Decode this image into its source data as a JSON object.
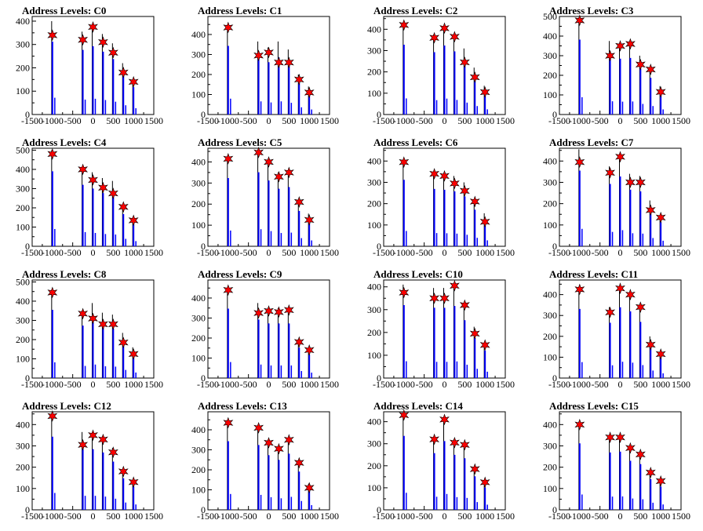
{
  "chart_data": [
    {
      "title": "Address Levels: C0",
      "type": "bar",
      "xlim": [
        -1500,
        1500
      ],
      "ylim": [
        0,
        420
      ],
      "xticks": [
        -1500,
        -1000,
        -500,
        0,
        500,
        1000,
        1500
      ],
      "yticks": [
        0,
        100,
        200,
        300,
        400
      ],
      "x": [
        -1000,
        -250,
        0,
        250,
        500,
        750,
        1000
      ],
      "values": [
        400,
        355,
        375,
        345,
        305,
        220,
        150
      ],
      "peaks": [
        340,
        320,
        375,
        310,
        265,
        180,
        140
      ]
    },
    {
      "title": "Address Levels: C1",
      "type": "bar",
      "xlim": [
        -1500,
        1500
      ],
      "ylim": [
        0,
        490
      ],
      "xticks": [
        -1500,
        -1000,
        -500,
        0,
        500,
        1000,
        1500
      ],
      "yticks": [
        0,
        100,
        200,
        300,
        400
      ],
      "x": [
        -1000,
        -250,
        0,
        250,
        500,
        750,
        1000
      ],
      "values": [
        440,
        365,
        335,
        365,
        325,
        200,
        140
      ],
      "peaks": [
        435,
        295,
        310,
        260,
        260,
        175,
        110
      ]
    },
    {
      "title": "Address Levels: C2",
      "type": "bar",
      "xlim": [
        -1500,
        1500
      ],
      "ylim": [
        0,
        460
      ],
      "xticks": [
        -1500,
        -1000,
        -500,
        0,
        500,
        1000,
        1500
      ],
      "yticks": [
        0,
        100,
        200,
        300,
        400
      ],
      "x": [
        -1000,
        -250,
        0,
        250,
        500,
        750,
        1000
      ],
      "values": [
        420,
        375,
        415,
        380,
        310,
        220,
        135
      ],
      "peaks": [
        420,
        360,
        405,
        365,
        245,
        175,
        105
      ]
    },
    {
      "title": "Address Levels: C3",
      "type": "bar",
      "xlim": [
        -1500,
        1500
      ],
      "ylim": [
        0,
        500
      ],
      "xticks": [
        -1500,
        -1000,
        -500,
        0,
        500,
        1000,
        1500
      ],
      "yticks": [
        0,
        100,
        200,
        300,
        400,
        500
      ],
      "x": [
        -1000,
        -250,
        0,
        250,
        500,
        750,
        1000
      ],
      "values": [
        490,
        375,
        365,
        370,
        300,
        240,
        145
      ],
      "peaks": [
        480,
        300,
        350,
        360,
        255,
        230,
        115
      ]
    },
    {
      "title": "Address Levels: C4",
      "type": "bar",
      "xlim": [
        -1500,
        1500
      ],
      "ylim": [
        0,
        510
      ],
      "xticks": [
        -1500,
        -1000,
        -500,
        0,
        500,
        1000,
        1500
      ],
      "yticks": [
        0,
        100,
        200,
        300,
        400,
        500
      ],
      "x": [
        -1000,
        -250,
        0,
        250,
        500,
        750,
        1000
      ],
      "values": [
        500,
        410,
        385,
        355,
        340,
        215,
        150
      ],
      "peaks": [
        480,
        400,
        345,
        305,
        275,
        205,
        135
      ]
    },
    {
      "title": "Address Levels: C5",
      "type": "bar",
      "xlim": [
        -1500,
        1500
      ],
      "ylim": [
        0,
        465
      ],
      "xticks": [
        -1500,
        -1000,
        -500,
        0,
        500,
        1000,
        1500
      ],
      "yticks": [
        0,
        100,
        200,
        300,
        400
      ],
      "x": [
        -1000,
        -250,
        0,
        250,
        500,
        750,
        1000
      ],
      "values": [
        415,
        450,
        400,
        350,
        360,
        215,
        155
      ],
      "peaks": [
        415,
        445,
        400,
        330,
        350,
        210,
        125
      ]
    },
    {
      "title": "Address Levels: C6",
      "type": "bar",
      "xlim": [
        -1500,
        1500
      ],
      "ylim": [
        0,
        460
      ],
      "xticks": [
        -1500,
        -1000,
        -500,
        0,
        500,
        1000,
        1500
      ],
      "yticks": [
        0,
        100,
        200,
        300,
        400
      ],
      "x": [
        -1000,
        -250,
        0,
        250,
        500,
        750,
        1000
      ],
      "values": [
        400,
        345,
        340,
        330,
        300,
        220,
        155
      ],
      "peaks": [
        395,
        340,
        330,
        295,
        260,
        210,
        115
      ]
    },
    {
      "title": "Address Levels: C7",
      "type": "bar",
      "xlim": [
        -1500,
        1500
      ],
      "ylim": [
        0,
        460
      ],
      "xticks": [
        -1500,
        -1000,
        -500,
        0,
        500,
        1000,
        1500
      ],
      "yticks": [
        0,
        100,
        200,
        300,
        400
      ],
      "x": [
        -1000,
        -250,
        0,
        250,
        500,
        750,
        1000
      ],
      "values": [
        455,
        375,
        420,
        340,
        330,
        215,
        145
      ],
      "peaks": [
        395,
        345,
        420,
        300,
        300,
        170,
        135
      ]
    },
    {
      "title": "Address Levels: C8",
      "type": "bar",
      "xlim": [
        -1500,
        1500
      ],
      "ylim": [
        0,
        510
      ],
      "xticks": [
        -1500,
        -1000,
        -500,
        0,
        500,
        1000,
        1500
      ],
      "yticks": [
        0,
        100,
        200,
        300,
        400,
        500
      ],
      "x": [
        -1000,
        -250,
        0,
        250,
        500,
        750,
        1000
      ],
      "values": [
        455,
        350,
        390,
        340,
        330,
        235,
        160
      ],
      "peaks": [
        445,
        335,
        310,
        280,
        280,
        185,
        125
      ]
    },
    {
      "title": "Address Levels: C9",
      "type": "bar",
      "xlim": [
        -1500,
        1500
      ],
      "ylim": [
        0,
        490
      ],
      "xticks": [
        -1500,
        -1000,
        -500,
        0,
        500,
        1000,
        1500
      ],
      "yticks": [
        0,
        100,
        200,
        300,
        400
      ],
      "x": [
        -1000,
        -250,
        0,
        250,
        500,
        750,
        1000
      ],
      "values": [
        445,
        375,
        350,
        350,
        350,
        195,
        150
      ],
      "peaks": [
        440,
        325,
        335,
        330,
        340,
        180,
        140
      ]
    },
    {
      "title": "Address Levels: C10",
      "type": "bar",
      "xlim": [
        -1500,
        1500
      ],
      "ylim": [
        0,
        430
      ],
      "xticks": [
        -1500,
        -1000,
        -500,
        0,
        500,
        1000,
        1500
      ],
      "yticks": [
        0,
        100,
        200,
        300,
        400
      ],
      "x": [
        -1000,
        -250,
        0,
        250,
        500,
        750,
        1000
      ],
      "values": [
        410,
        395,
        395,
        405,
        325,
        225,
        155
      ],
      "peaks": [
        375,
        350,
        350,
        405,
        320,
        195,
        145
      ]
    },
    {
      "title": "Address Levels: C11",
      "type": "bar",
      "xlim": [
        -1500,
        1500
      ],
      "ylim": [
        0,
        470
      ],
      "xticks": [
        -1500,
        -1000,
        -500,
        0,
        500,
        1000,
        1500
      ],
      "yticks": [
        0,
        100,
        200,
        300,
        400
      ],
      "x": [
        -1000,
        -250,
        0,
        250,
        500,
        750,
        1000
      ],
      "values": [
        425,
        340,
        435,
        410,
        345,
        200,
        125
      ],
      "peaks": [
        425,
        315,
        430,
        400,
        340,
        160,
        115
      ]
    },
    {
      "title": "Address Levels: C12",
      "type": "bar",
      "xlim": [
        -1500,
        1500
      ],
      "ylim": [
        0,
        460
      ],
      "xticks": [
        -1500,
        -1000,
        -500,
        0,
        500,
        1000,
        1500
      ],
      "yticks": [
        0,
        100,
        200,
        300,
        400
      ],
      "x": [
        -1000,
        -250,
        0,
        250,
        500,
        750,
        1000
      ],
      "values": [
        440,
        365,
        365,
        345,
        290,
        190,
        140
      ],
      "peaks": [
        440,
        305,
        350,
        330,
        270,
        180,
        130
      ]
    },
    {
      "title": "Address Levels: C13",
      "type": "bar",
      "xlim": [
        -1500,
        1500
      ],
      "ylim": [
        0,
        490
      ],
      "xticks": [
        -1500,
        -1000,
        -500,
        0,
        500,
        1000,
        1500
      ],
      "yticks": [
        0,
        100,
        200,
        300,
        400
      ],
      "x": [
        -1000,
        -250,
        0,
        250,
        500,
        750,
        1000
      ],
      "values": [
        440,
        415,
        350,
        320,
        360,
        245,
        130
      ],
      "peaks": [
        435,
        410,
        335,
        305,
        350,
        235,
        110
      ]
    },
    {
      "title": "Address Levels: C14",
      "type": "bar",
      "xlim": [
        -1500,
        1500
      ],
      "ylim": [
        0,
        445
      ],
      "xticks": [
        -1500,
        -1000,
        -500,
        0,
        500,
        1000,
        1500
      ],
      "yticks": [
        0,
        100,
        200,
        300,
        400
      ],
      "x": [
        -1000,
        -250,
        0,
        250,
        500,
        750,
        1000
      ],
      "values": [
        430,
        330,
        400,
        320,
        300,
        195,
        130
      ],
      "peaks": [
        430,
        320,
        410,
        305,
        295,
        185,
        125
      ]
    },
    {
      "title": "Address Levels: C15",
      "type": "bar",
      "xlim": [
        -1500,
        1500
      ],
      "ylim": [
        0,
        460
      ],
      "xticks": [
        -1500,
        -1000,
        -500,
        0,
        500,
        1000,
        1500
      ],
      "yticks": [
        0,
        100,
        200,
        300,
        400
      ],
      "x": [
        -1000,
        -250,
        0,
        250,
        500,
        750,
        1000
      ],
      "values": [
        400,
        345,
        350,
        295,
        275,
        185,
        140
      ],
      "peaks": [
        400,
        340,
        340,
        290,
        260,
        175,
        135
      ]
    }
  ],
  "colors": {
    "bars": "#0000ff",
    "envelope": "#000000",
    "marker": "#ff0000",
    "axis": "#000000"
  }
}
